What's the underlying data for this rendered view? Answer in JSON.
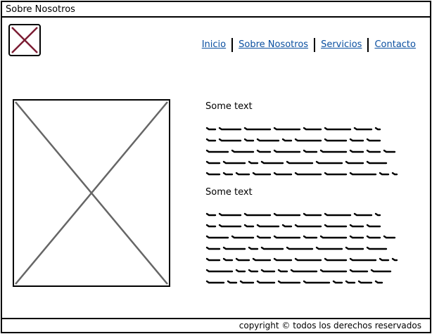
{
  "window": {
    "title": "Sobre Nosotros"
  },
  "header": {
    "logo_icon": "broken-image-icon",
    "nav": [
      {
        "label": "Inicio"
      },
      {
        "label": "Sobre Nosotros"
      },
      {
        "label": "Servicios"
      },
      {
        "label": "Contacto"
      }
    ]
  },
  "main": {
    "image_icon": "image-placeholder-icon",
    "sections": [
      {
        "heading": "Some text",
        "lines": 5
      },
      {
        "heading": "Some text",
        "lines": 7
      }
    ]
  },
  "footer": {
    "copyright": "copyright © todos los derechos reservados"
  },
  "colors": {
    "link": "#0a4fa0",
    "logo_x": "#7b1c33",
    "placeholder_x": "#666666"
  }
}
